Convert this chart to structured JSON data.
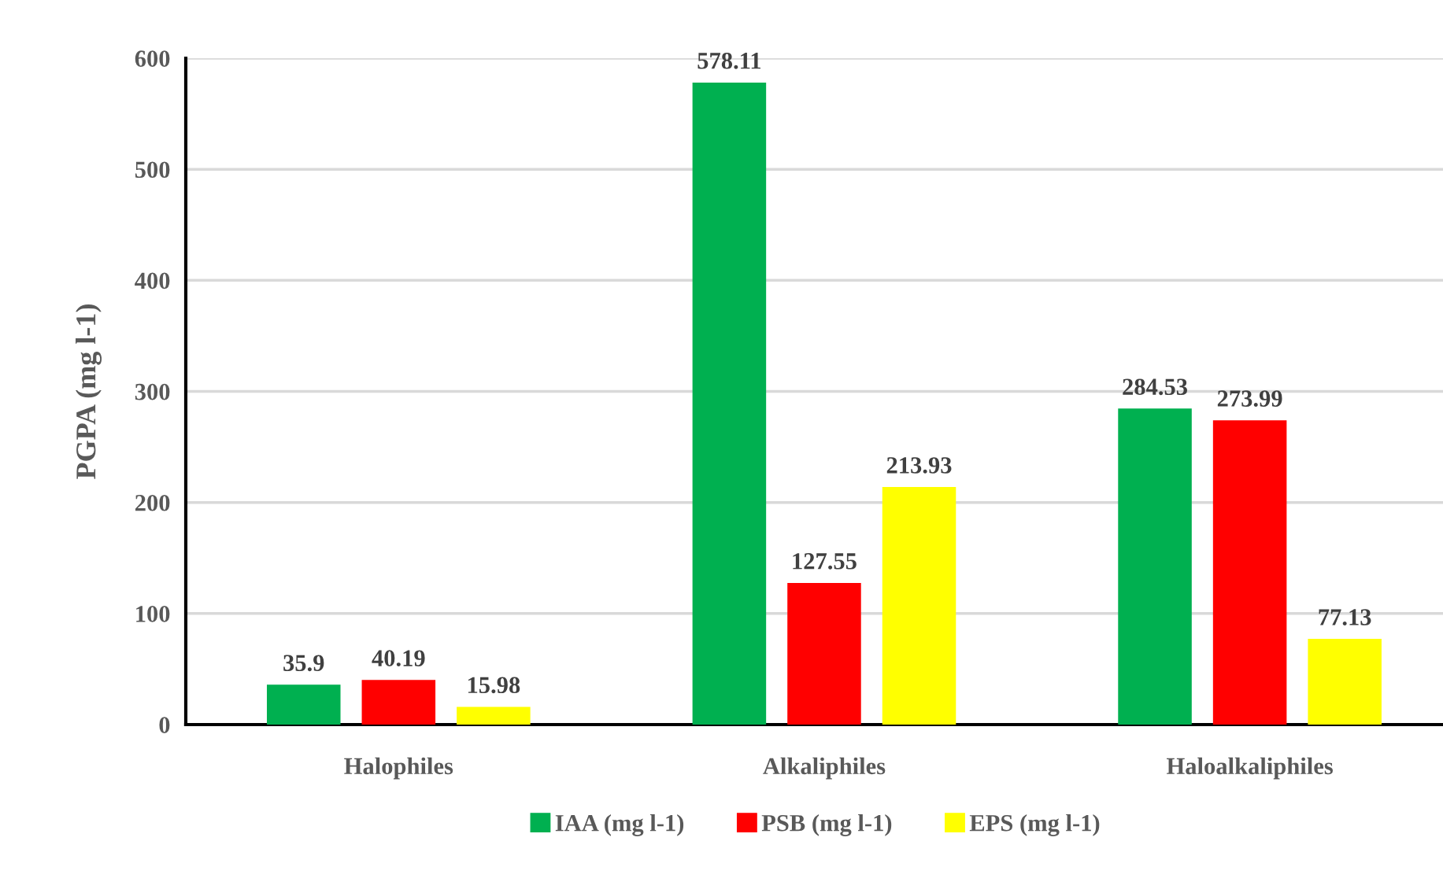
{
  "chart_data": {
    "type": "bar",
    "ylabel": "PGPA (mg l-1)",
    "categories": [
      "Halophiles",
      "Alkaliphiles",
      "Haloalkaliphiles"
    ],
    "series": [
      {
        "name": "IAA (mg l-1)",
        "color": "#00b050",
        "values": [
          35.9,
          578.11,
          284.53
        ]
      },
      {
        "name": "PSB (mg l-1)",
        "color": "#ff0000",
        "values": [
          40.19,
          127.55,
          273.99
        ]
      },
      {
        "name": "EPS (mg l-1)",
        "color": "#ffff00",
        "values": [
          15.98,
          213.93,
          77.13
        ]
      }
    ],
    "ylim": [
      0,
      600
    ],
    "yticks": [
      0,
      100,
      200,
      300,
      400,
      500,
      600
    ],
    "grid": "y",
    "legend": "bottom",
    "data_labels": true
  }
}
